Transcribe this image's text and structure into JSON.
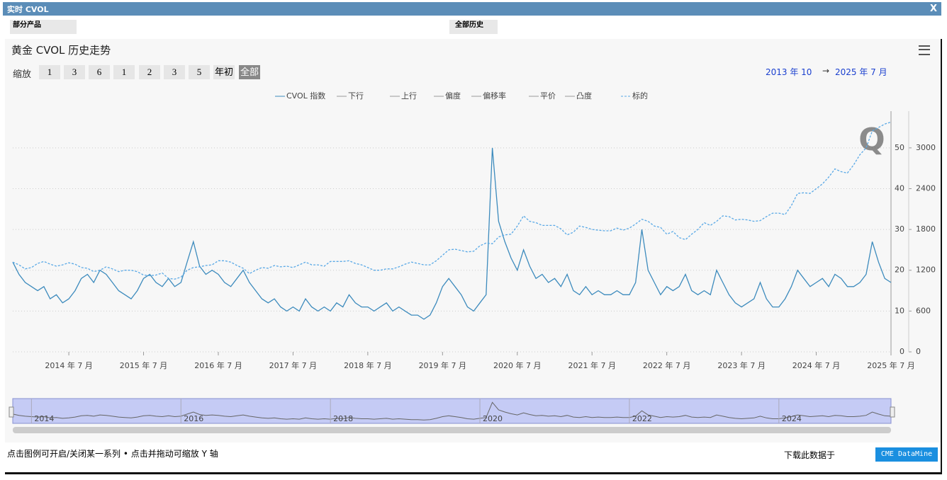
{
  "header": {
    "title": "实时 CVOL",
    "close": "X"
  },
  "filters": {
    "product": "部分产品",
    "history": "全部历史"
  },
  "zoom": {
    "label": "缩放",
    "buttons": [
      "1",
      "3",
      "6",
      "1",
      "2",
      "3",
      "5",
      "年初",
      "全部"
    ]
  },
  "range": {
    "from": "2013 年 10",
    "arrow": "→",
    "to": "2025 年 7 月"
  },
  "footer": {
    "hint": "点击图例可开启/关闭某一系列 • 点击并拖动可缩放 Y 轴",
    "download": "下载此数据于",
    "link": "CME DataMine"
  },
  "chart_data": {
    "type": "line",
    "title": "黄金 CVOL 历史走势",
    "legend": [
      "CVOL 指数",
      "下行",
      "上行",
      "偏度",
      "偏移率",
      "平价",
      "凸度",
      "标的"
    ],
    "x": [
      "2013-10",
      "2013-11",
      "2013-12",
      "2014-01",
      "2014-02",
      "2014-03",
      "2014-04",
      "2014-05",
      "2014-06",
      "2014-07",
      "2014-08",
      "2014-09",
      "2014-10",
      "2014-11",
      "2014-12",
      "2015-01",
      "2015-02",
      "2015-03",
      "2015-04",
      "2015-05",
      "2015-06",
      "2015-07",
      "2015-08",
      "2015-09",
      "2015-10",
      "2015-11",
      "2015-12",
      "2016-01",
      "2016-02",
      "2016-03",
      "2016-04",
      "2016-05",
      "2016-06",
      "2016-07",
      "2016-08",
      "2016-09",
      "2016-10",
      "2016-11",
      "2016-12",
      "2017-01",
      "2017-02",
      "2017-03",
      "2017-04",
      "2017-05",
      "2017-06",
      "2017-07",
      "2017-08",
      "2017-09",
      "2017-10",
      "2017-11",
      "2017-12",
      "2018-01",
      "2018-02",
      "2018-03",
      "2018-04",
      "2018-05",
      "2018-06",
      "2018-07",
      "2018-08",
      "2018-09",
      "2018-10",
      "2018-11",
      "2018-12",
      "2019-01",
      "2019-02",
      "2019-03",
      "2019-04",
      "2019-05",
      "2019-06",
      "2019-07",
      "2019-08",
      "2019-09",
      "2019-10",
      "2019-11",
      "2019-12",
      "2020-01",
      "2020-02",
      "2020-03",
      "2020-04",
      "2020-05",
      "2020-06",
      "2020-07",
      "2020-08",
      "2020-09",
      "2020-10",
      "2020-11",
      "2020-12",
      "2021-01",
      "2021-02",
      "2021-03",
      "2021-04",
      "2021-05",
      "2021-06",
      "2021-07",
      "2021-08",
      "2021-09",
      "2021-10",
      "2021-11",
      "2021-12",
      "2022-01",
      "2022-02",
      "2022-03",
      "2022-04",
      "2022-05",
      "2022-06",
      "2022-07",
      "2022-08",
      "2022-09",
      "2022-10",
      "2022-11",
      "2022-12",
      "2023-01",
      "2023-02",
      "2023-03",
      "2023-04",
      "2023-05",
      "2023-06",
      "2023-07",
      "2023-08",
      "2023-09",
      "2023-10",
      "2023-11",
      "2023-12",
      "2024-01",
      "2024-02",
      "2024-03",
      "2024-04",
      "2024-05",
      "2024-06",
      "2024-07",
      "2024-08",
      "2024-09",
      "2024-10",
      "2024-11",
      "2024-12",
      "2025-01",
      "2025-02",
      "2025-03",
      "2025-04",
      "2025-05",
      "2025-06",
      "2025-07"
    ],
    "series": [
      {
        "name": "CVOL 指数",
        "color": "#3d8bbd",
        "values": [
          22,
          19,
          17,
          16,
          15,
          16,
          13,
          14,
          12,
          13,
          15,
          18,
          19,
          17,
          20,
          19,
          17,
          15,
          14,
          13,
          15,
          18,
          19,
          17,
          16,
          18,
          16,
          17,
          22,
          27,
          21,
          19,
          20,
          19,
          17,
          16,
          18,
          20,
          17,
          15,
          13,
          12,
          13,
          11,
          10,
          11,
          10,
          13,
          11,
          10,
          11,
          10,
          12,
          11,
          14,
          12,
          11,
          11,
          10,
          11,
          12,
          10,
          11,
          10,
          9,
          9,
          8,
          9,
          12,
          16,
          18,
          16,
          14,
          11,
          10,
          12,
          14,
          50,
          32,
          27,
          23,
          20,
          25,
          21,
          18,
          19,
          17,
          18,
          16,
          19,
          15,
          14,
          16,
          14,
          15,
          14,
          14,
          15,
          14,
          14,
          17,
          30,
          20,
          17,
          14,
          16,
          15,
          16,
          19,
          15,
          14,
          15,
          14,
          20,
          17,
          14,
          12,
          11,
          12,
          13,
          17,
          13,
          11,
          11,
          13,
          16,
          20,
          18,
          16,
          17,
          18,
          16,
          19,
          18,
          16,
          16,
          17,
          19,
          27,
          22,
          18,
          17
        ]
      },
      {
        "name": "标的",
        "color": "#5aa9e6",
        "axis": "y2",
        "dashed": true,
        "values": [
          1320,
          1280,
          1220,
          1240,
          1300,
          1330,
          1290,
          1260,
          1280,
          1310,
          1290,
          1240,
          1230,
          1180,
          1200,
          1250,
          1220,
          1180,
          1200,
          1200,
          1180,
          1130,
          1120,
          1130,
          1160,
          1080,
          1070,
          1100,
          1200,
          1240,
          1250,
          1270,
          1280,
          1340,
          1340,
          1320,
          1270,
          1230,
          1150,
          1200,
          1240,
          1230,
          1270,
          1250,
          1260,
          1240,
          1280,
          1320,
          1280,
          1280,
          1260,
          1330,
          1330,
          1330,
          1340,
          1300,
          1280,
          1240,
          1200,
          1200,
          1220,
          1220,
          1250,
          1290,
          1320,
          1300,
          1280,
          1280,
          1340,
          1420,
          1500,
          1510,
          1490,
          1470,
          1480,
          1560,
          1600,
          1590,
          1690,
          1720,
          1730,
          1850,
          2000,
          1920,
          1900,
          1860,
          1860,
          1860,
          1810,
          1720,
          1760,
          1850,
          1830,
          1800,
          1790,
          1780,
          1780,
          1820,
          1790,
          1820,
          1880,
          1950,
          1920,
          1850,
          1830,
          1730,
          1770,
          1680,
          1650,
          1730,
          1800,
          1900,
          1860,
          1920,
          2000,
          1990,
          1940,
          1950,
          1940,
          1920,
          1930,
          1990,
          2040,
          2040,
          2020,
          2150,
          2330,
          2340,
          2330,
          2400,
          2470,
          2570,
          2690,
          2650,
          2630,
          2750,
          2900,
          3000,
          3250,
          3300,
          3350,
          3380
        ]
      }
    ],
    "xlim": [
      "2013-10",
      "2025-07"
    ],
    "xticks": [
      {
        "value": "2014-07",
        "label": "2014 年 7 月"
      },
      {
        "value": "2015-07",
        "label": "2015 年 7 月"
      },
      {
        "value": "2016-07",
        "label": "2016 年 7 月"
      },
      {
        "value": "2017-07",
        "label": "2017 年 7 月"
      },
      {
        "value": "2018-07",
        "label": "2018 年 7 月"
      },
      {
        "value": "2019-07",
        "label": "2019 年 7 月"
      },
      {
        "value": "2020-07",
        "label": "2020 年 7 月"
      },
      {
        "value": "2021-07",
        "label": "2021 年 7 月"
      },
      {
        "value": "2022-07",
        "label": "2022 年 7 月"
      },
      {
        "value": "2023-07",
        "label": "2023 年 7 月"
      },
      {
        "value": "2024-07",
        "label": "2024 年 7 月"
      },
      {
        "value": "2025-07",
        "label": "2025 年 7 月"
      }
    ],
    "ylim": [
      0,
      59
    ],
    "yticks": [
      0,
      10,
      20,
      30,
      40,
      50
    ],
    "y2lim": [
      0,
      3540
    ],
    "y2ticks": [
      0,
      600,
      1200,
      1800,
      2400,
      3000
    ],
    "grid": true,
    "navigator": {
      "ticks": [
        {
          "value": "2014-01",
          "label": "2014"
        },
        {
          "value": "2016-01",
          "label": "2016"
        },
        {
          "value": "2018-01",
          "label": "2018"
        },
        {
          "value": "2020-01",
          "label": "2020"
        },
        {
          "value": "2022-01",
          "label": "2022"
        },
        {
          "value": "2024-01",
          "label": "2024"
        }
      ]
    }
  }
}
